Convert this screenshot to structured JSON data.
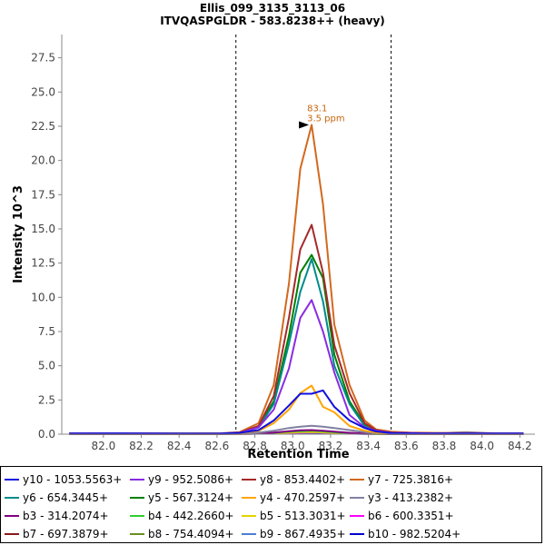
{
  "title": "Ellis_099_3135_3113_06",
  "subtitle": "ITVQASPGLDR - 583.8238++ (heavy)",
  "chart_data": {
    "type": "line",
    "xlabel": "Retention Time",
    "ylabel": "Intensity 10^3",
    "xlim": [
      81.78,
      84.28
    ],
    "ylim": [
      0,
      29.2
    ],
    "x_ticks": [
      "82.0",
      "82.2",
      "82.4",
      "82.6",
      "82.8",
      "83.0",
      "83.2",
      "83.4",
      "83.6",
      "83.8",
      "84.0",
      "84.2"
    ],
    "y_ticks": [
      "0.0",
      "2.5",
      "5.0",
      "7.5",
      "10.0",
      "12.5",
      "15.0",
      "17.5",
      "20.0",
      "22.5",
      "25.0",
      "27.5"
    ],
    "grid": false,
    "integration_bounds": [
      82.7,
      83.52
    ],
    "peak_annotation": {
      "x": 83.1,
      "y": 22.6,
      "rt_label": "83.1",
      "ppm_label": "3.5 ppm",
      "color": "#c8650a"
    },
    "x": [
      81.82,
      82.02,
      82.22,
      82.42,
      82.62,
      82.72,
      82.82,
      82.9,
      82.98,
      83.04,
      83.1,
      83.16,
      83.22,
      83.3,
      83.38,
      83.44,
      83.52,
      83.62,
      83.72,
      83.82,
      83.92,
      84.02,
      84.12,
      84.22
    ],
    "series": [
      {
        "name": "y10 - 1053.5563+",
        "color": "#1010e0",
        "values": [
          0.05,
          0.06,
          0.05,
          0.04,
          0.05,
          0.1,
          0.3,
          1.0,
          2.1,
          2.95,
          2.95,
          3.2,
          2.0,
          1.0,
          0.45,
          0.2,
          0.08,
          0.06,
          0.05,
          0.05,
          0.05,
          0.05,
          0.05,
          0.05
        ]
      },
      {
        "name": "y9 - 952.5086+",
        "color": "#8a2be2",
        "values": [
          0.05,
          0.06,
          0.05,
          0.04,
          0.05,
          0.1,
          0.5,
          1.8,
          4.8,
          8.5,
          9.8,
          7.5,
          4.5,
          1.4,
          0.5,
          0.25,
          0.1,
          0.08,
          0.06,
          0.05,
          0.05,
          0.05,
          0.05,
          0.05
        ]
      },
      {
        "name": "y8 - 853.4402+",
        "color": "#a52a2a",
        "values": [
          0.05,
          0.06,
          0.05,
          0.04,
          0.05,
          0.12,
          0.6,
          2.8,
          8.5,
          13.5,
          15.3,
          11.8,
          6.5,
          3.0,
          0.8,
          0.3,
          0.12,
          0.08,
          0.06,
          0.05,
          0.05,
          0.05,
          0.05,
          0.05
        ]
      },
      {
        "name": "y7 - 725.3816+",
        "color": "#d2691e",
        "values": [
          0.05,
          0.06,
          0.05,
          0.04,
          0.06,
          0.15,
          0.8,
          3.6,
          11.0,
          19.4,
          22.6,
          16.8,
          8.0,
          3.6,
          1.0,
          0.35,
          0.18,
          0.12,
          0.1,
          0.08,
          0.08,
          0.07,
          0.06,
          0.05
        ]
      },
      {
        "name": "y6 - 654.3445+",
        "color": "#008b8b",
        "values": [
          0.05,
          0.06,
          0.05,
          0.04,
          0.05,
          0.1,
          0.5,
          2.2,
          6.6,
          10.4,
          12.8,
          9.7,
          5.0,
          2.2,
          0.6,
          0.25,
          0.1,
          0.08,
          0.06,
          0.05,
          0.05,
          0.05,
          0.05,
          0.05
        ]
      },
      {
        "name": "y5 - 567.3124+",
        "color": "#008000",
        "values": [
          0.05,
          0.06,
          0.05,
          0.04,
          0.05,
          0.1,
          0.6,
          2.4,
          7.2,
          11.8,
          13.1,
          11.4,
          5.8,
          2.4,
          0.7,
          0.3,
          0.12,
          0.08,
          0.06,
          0.05,
          0.05,
          0.05,
          0.05,
          0.05
        ]
      },
      {
        "name": "y4 - 470.2597+",
        "color": "#ffa500",
        "values": [
          0.05,
          0.05,
          0.05,
          0.04,
          0.05,
          0.08,
          0.25,
          0.8,
          1.8,
          3.0,
          3.55,
          2.0,
          1.6,
          0.6,
          0.25,
          0.12,
          0.06,
          0.05,
          0.05,
          0.05,
          0.05,
          0.05,
          0.05,
          0.05
        ]
      },
      {
        "name": "y3 - 413.2382+",
        "color": "#8080a0",
        "values": [
          0.05,
          0.05,
          0.05,
          0.04,
          0.05,
          0.06,
          0.12,
          0.25,
          0.45,
          0.55,
          0.62,
          0.55,
          0.45,
          0.3,
          0.15,
          0.08,
          0.05,
          0.05,
          0.05,
          0.1,
          0.15,
          0.08,
          0.05,
          0.05
        ]
      },
      {
        "name": "b3 - 314.2074+",
        "color": "#800080",
        "values": [
          0.02,
          0.02,
          0.02,
          0.02,
          0.02,
          0.03,
          0.05,
          0.12,
          0.22,
          0.28,
          0.3,
          0.25,
          0.18,
          0.1,
          0.05,
          0.03,
          0.02,
          0.02,
          0.02,
          0.02,
          0.02,
          0.02,
          0.02,
          0.02
        ]
      },
      {
        "name": "b4 - 442.2660+",
        "color": "#32cd32",
        "values": [
          0.02,
          0.02,
          0.02,
          0.02,
          0.02,
          0.03,
          0.05,
          0.1,
          0.18,
          0.22,
          0.25,
          0.2,
          0.14,
          0.08,
          0.04,
          0.02,
          0.02,
          0.02,
          0.02,
          0.02,
          0.02,
          0.02,
          0.02,
          0.02
        ]
      },
      {
        "name": "b5 - 513.3031+",
        "color": "#e6d200",
        "values": [
          0.02,
          0.02,
          0.02,
          0.02,
          0.02,
          0.02,
          0.04,
          0.08,
          0.12,
          0.15,
          0.16,
          0.13,
          0.1,
          0.06,
          0.03,
          0.02,
          0.02,
          0.02,
          0.02,
          0.02,
          0.02,
          0.02,
          0.02,
          0.02
        ]
      },
      {
        "name": "b6 - 600.3351+",
        "color": "#ff00ff",
        "values": [
          0.02,
          0.02,
          0.02,
          0.02,
          0.02,
          0.02,
          0.03,
          0.06,
          0.1,
          0.12,
          0.14,
          0.12,
          0.08,
          0.05,
          0.03,
          0.02,
          0.02,
          0.02,
          0.02,
          0.02,
          0.02,
          0.02,
          0.02,
          0.02
        ]
      },
      {
        "name": "b7 - 697.3879+",
        "color": "#8b1a1a",
        "values": [
          0.02,
          0.02,
          0.02,
          0.02,
          0.02,
          0.03,
          0.05,
          0.1,
          0.16,
          0.2,
          0.22,
          0.18,
          0.12,
          0.07,
          0.04,
          0.02,
          0.02,
          0.02,
          0.02,
          0.02,
          0.02,
          0.02,
          0.02,
          0.02
        ]
      },
      {
        "name": "b8 - 754.4094+",
        "color": "#6b8e23",
        "values": [
          0.02,
          0.02,
          0.02,
          0.02,
          0.02,
          0.02,
          0.04,
          0.08,
          0.12,
          0.15,
          0.17,
          0.14,
          0.1,
          0.06,
          0.03,
          0.02,
          0.02,
          0.02,
          0.02,
          0.02,
          0.02,
          0.02,
          0.02,
          0.02
        ]
      },
      {
        "name": "b9 - 867.4935+",
        "color": "#4a7fd4",
        "values": [
          0.02,
          0.02,
          0.02,
          0.02,
          0.02,
          0.02,
          0.04,
          0.07,
          0.1,
          0.12,
          0.14,
          0.12,
          0.09,
          0.05,
          0.03,
          0.02,
          0.02,
          0.02,
          0.02,
          0.02,
          0.02,
          0.02,
          0.02,
          0.02
        ]
      },
      {
        "name": "b10 - 982.5204+",
        "color": "#0000cd",
        "values": [
          0.02,
          0.02,
          0.02,
          0.02,
          0.02,
          0.02,
          0.03,
          0.05,
          0.08,
          0.1,
          0.11,
          0.09,
          0.07,
          0.04,
          0.02,
          0.02,
          0.02,
          0.02,
          0.02,
          0.02,
          0.02,
          0.02,
          0.02,
          0.02
        ]
      }
    ]
  }
}
